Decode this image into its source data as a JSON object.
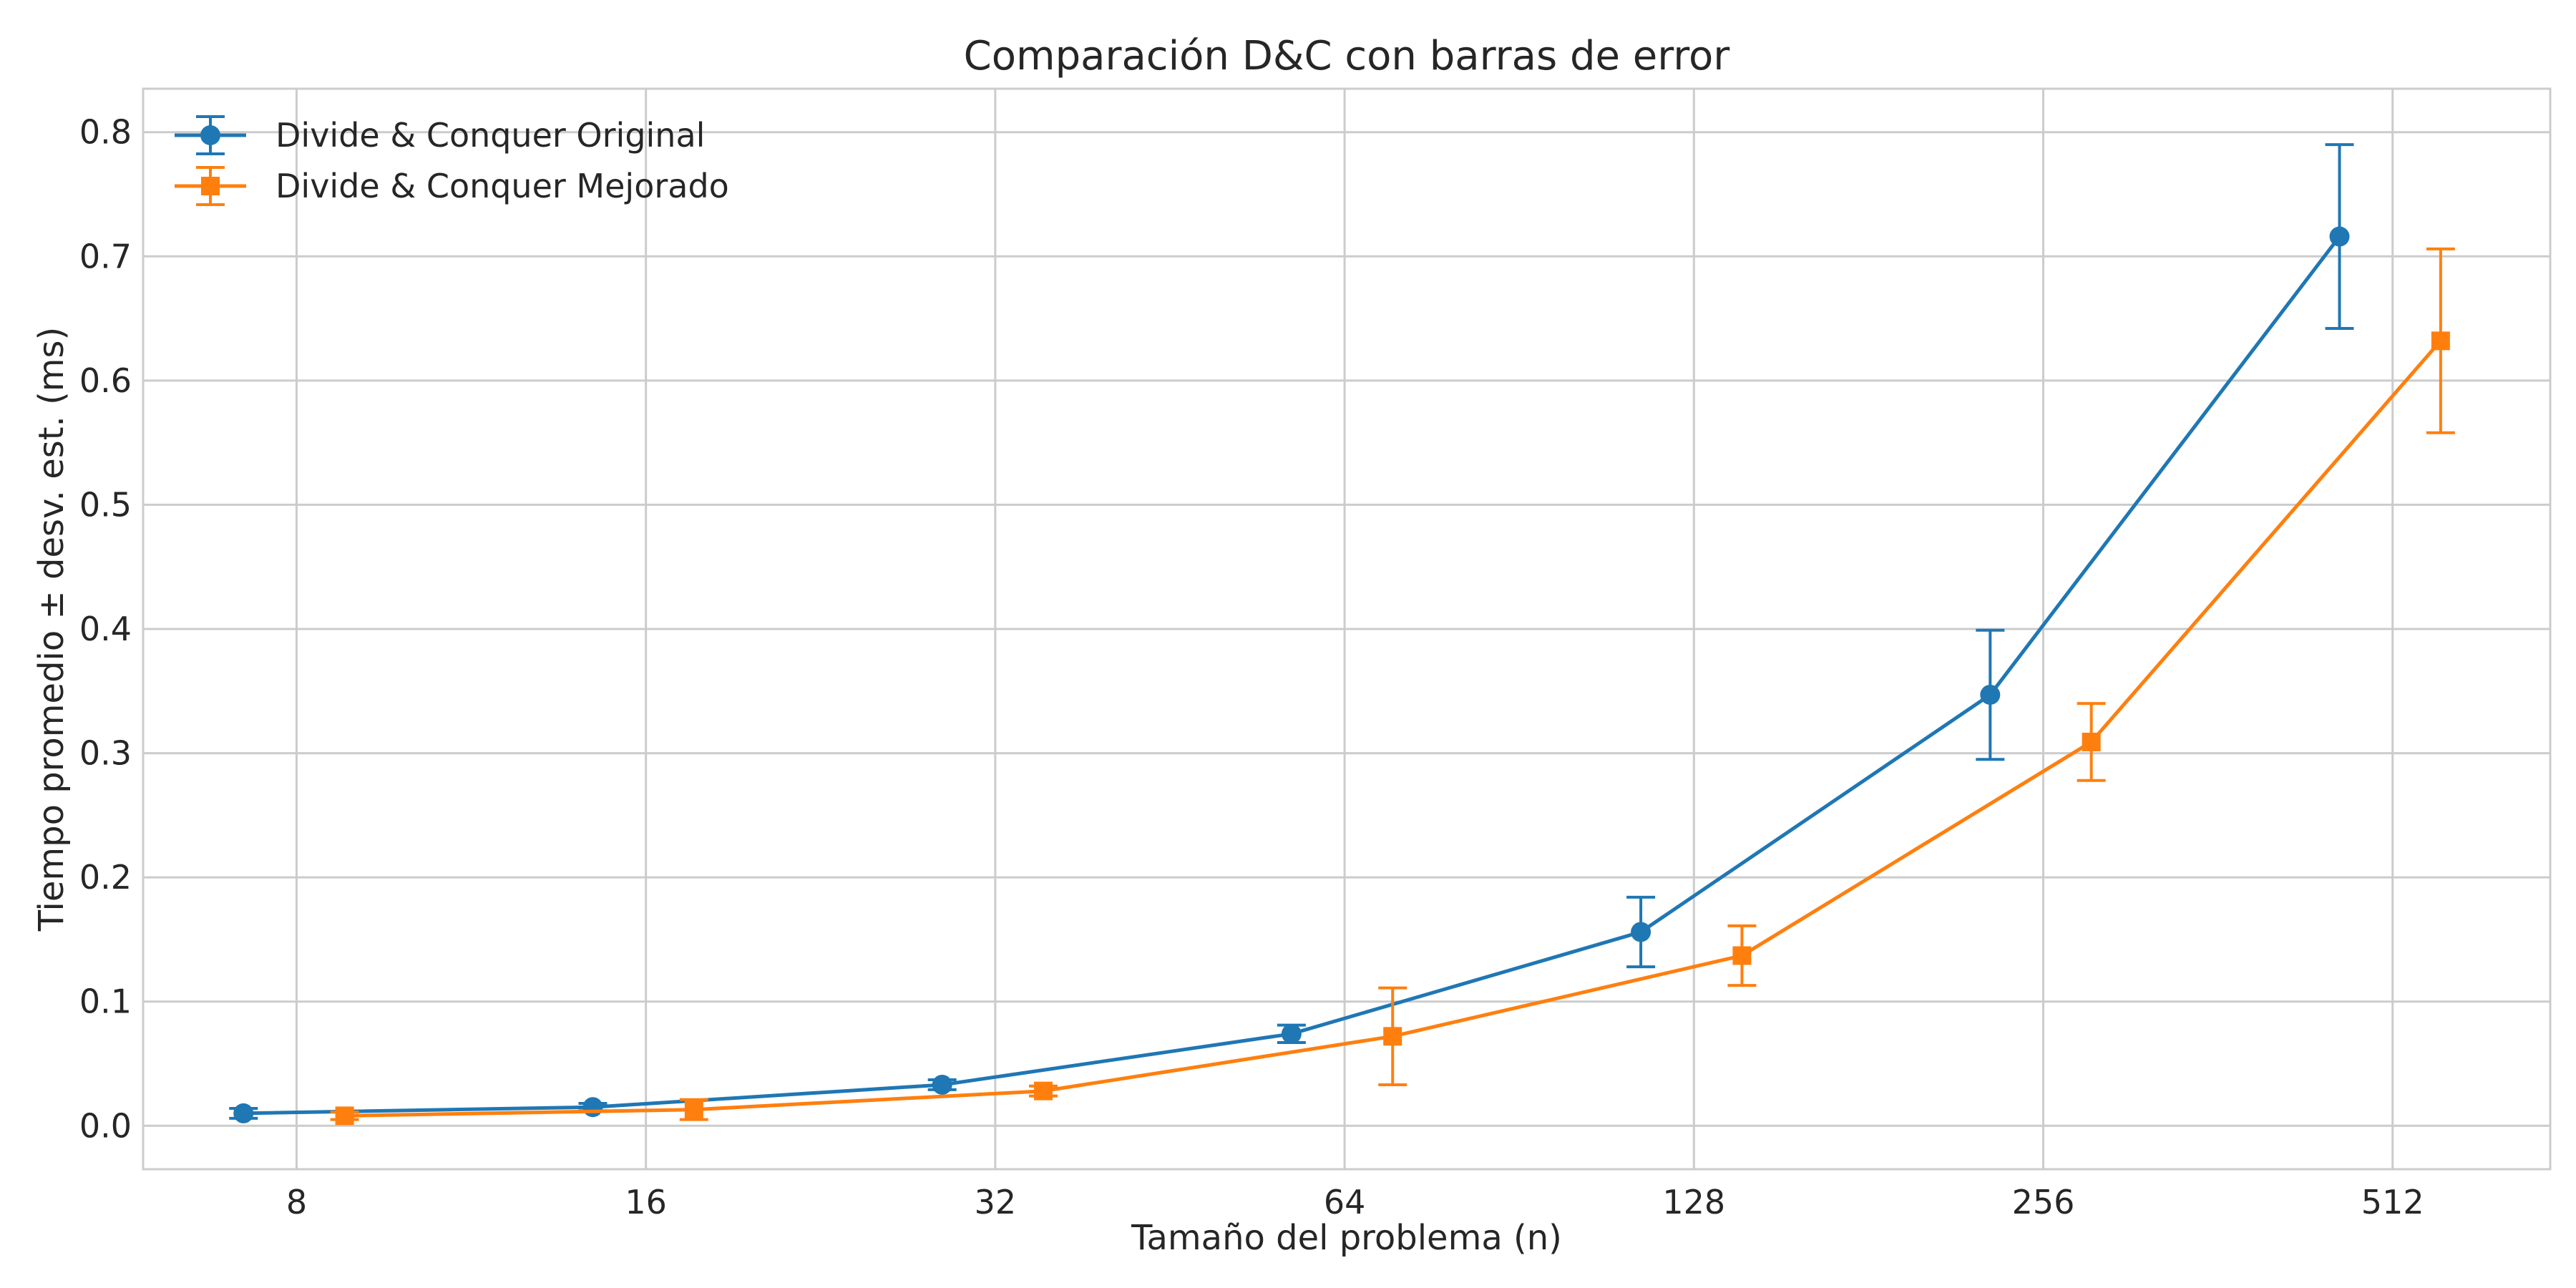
{
  "chart_data": {
    "type": "line",
    "title": "Comparación D&C con barras de error",
    "xlabel": "Tamaño del problema (n)",
    "ylabel": "Tiempo promedio ± desv. est. (ms)",
    "x_scale": "log2",
    "x_ticks": [
      8,
      16,
      32,
      64,
      128,
      256,
      512
    ],
    "x_tick_labels": [
      "8",
      "16",
      "32",
      "64",
      "128",
      "256",
      "512"
    ],
    "xlim": [
      5.9,
      700
    ],
    "ylim": [
      -0.035,
      0.835
    ],
    "y_ticks": [
      0.0,
      0.1,
      0.2,
      0.3,
      0.4,
      0.5,
      0.6,
      0.7,
      0.8
    ],
    "y_tick_labels": [
      "0.0",
      "0.1",
      "0.2",
      "0.3",
      "0.4",
      "0.5",
      "0.6",
      "0.7",
      "0.8"
    ],
    "grid": true,
    "legend_position": "top-left",
    "series": [
      {
        "name": "Divide & Conquer Original",
        "color": "#1f77b4",
        "marker": "circle",
        "x": [
          7.2,
          14.4,
          28.8,
          57.6,
          115.2,
          230.4,
          460.8
        ],
        "y": [
          0.01,
          0.015,
          0.033,
          0.074,
          0.156,
          0.347,
          0.716
        ],
        "err": [
          0.004,
          0.003,
          0.004,
          0.007,
          0.028,
          0.052,
          0.074
        ]
      },
      {
        "name": "Divide & Conquer Mejorado",
        "color": "#ff7f0e",
        "marker": "square",
        "x": [
          8.8,
          17.6,
          35.2,
          70.4,
          140.8,
          281.6,
          563.2
        ],
        "y": [
          0.008,
          0.013,
          0.028,
          0.072,
          0.137,
          0.309,
          0.632
        ],
        "err": [
          0.003,
          0.008,
          0.004,
          0.039,
          0.024,
          0.031,
          0.074
        ]
      }
    ]
  }
}
